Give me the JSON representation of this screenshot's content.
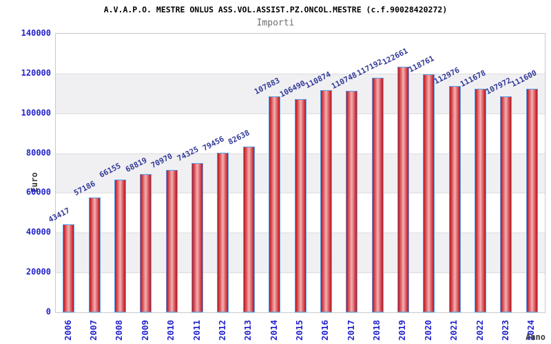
{
  "chart_data": {
    "type": "bar",
    "title": "A.V.A.P.O. MESTRE ONLUS ASS.VOL.ASSIST.PZ.ONCOL.MESTRE (c.f.90028420272)",
    "subtitle": "Importi",
    "xlabel": "Anno",
    "ylabel": "Euro",
    "categories": [
      "2006",
      "2007",
      "2008",
      "2009",
      "2010",
      "2011",
      "2012",
      "2013",
      "2014",
      "2015",
      "2016",
      "2017",
      "2018",
      "2019",
      "2020",
      "2021",
      "2022",
      "2023",
      "2024"
    ],
    "values": [
      43417,
      57186,
      66155,
      68819,
      70970,
      74325,
      79456,
      82638,
      107883,
      106490,
      110874,
      110748,
      117192,
      122661,
      118761,
      112976,
      111678,
      107972,
      111600
    ],
    "ylim": [
      0,
      140000
    ],
    "ytick_step": 20000,
    "grid": "alternating-horizontal-bands",
    "legend_position": "none",
    "colors": {
      "bar_edge_red": "#bb1420",
      "bar_mid_red": "#d84c52",
      "bar_center_pink": "#f2b2b2",
      "bar_border_blue": "#55a2ee",
      "axis_tick_text": "#2222cc",
      "value_label_text": "#333a99",
      "band_gray": "#f0f0f3",
      "band_white": "#ffffff",
      "grid_line": "#dcdcdc",
      "plot_border": "#c9c9c9",
      "title_text": "#000000",
      "subtitle_text": "#6e6e6e",
      "axis_title_text": "#3a3a3a"
    }
  }
}
